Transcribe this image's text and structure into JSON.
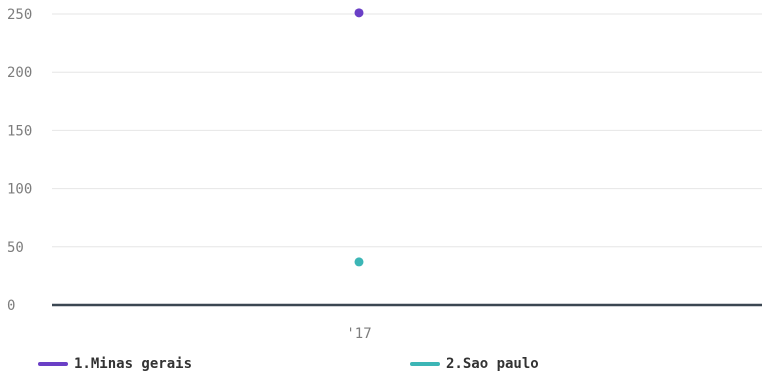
{
  "chart_data": {
    "type": "scatter",
    "categories": [
      "'17"
    ],
    "series": [
      {
        "name": "1.Minas gerais",
        "color": "#6a3fc6",
        "values": [
          251
        ]
      },
      {
        "name": "2.Sao paulo",
        "color": "#3cb6b6",
        "values": [
          37
        ]
      }
    ],
    "ylim": [
      0,
      250
    ],
    "yticks": [
      0,
      50,
      100,
      150,
      200,
      250
    ],
    "grid": true,
    "legend_position": "bottom",
    "title": "",
    "xlabel": "",
    "ylabel": ""
  }
}
